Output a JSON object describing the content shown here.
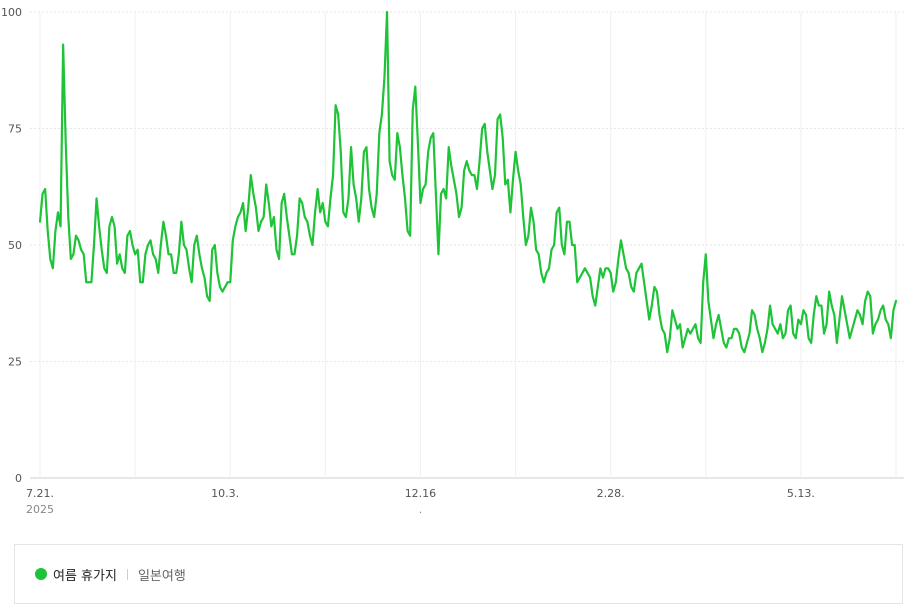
{
  "chart_data": {
    "type": "line",
    "y_ticks": [
      "0",
      "25",
      "50",
      "75",
      "100"
    ],
    "ylim": [
      0,
      100
    ],
    "x_ticks": [
      {
        "label": "7.21.",
        "sub": "2025",
        "index": 0
      },
      {
        "label": "10.3.",
        "sub": "",
        "index": 72
      },
      {
        "label": "12.16",
        "sub": ".",
        "index": 148
      },
      {
        "label": "2.28.",
        "sub": "",
        "index": 222
      },
      {
        "label": "5.13.",
        "sub": "",
        "index": 296
      }
    ],
    "grid": true,
    "legend_position": "bottom",
    "series": [
      {
        "name": "여름 휴가지",
        "color": "#1ec337",
        "values": [
          55,
          61,
          62,
          53,
          47,
          45,
          53,
          57,
          54,
          93,
          72,
          56,
          47,
          48,
          52,
          51,
          49,
          48,
          42,
          42,
          42,
          50,
          60,
          54,
          49,
          45,
          44,
          54,
          56,
          54,
          46,
          48,
          45,
          44,
          52,
          53,
          50,
          48,
          49,
          42,
          42,
          48,
          50,
          51,
          48,
          47,
          44,
          50,
          55,
          52,
          48,
          48,
          44,
          44,
          48,
          55,
          50,
          49,
          45,
          42,
          50,
          52,
          48,
          45,
          43,
          39,
          38,
          49,
          50,
          44,
          41,
          40,
          41,
          42,
          42,
          51,
          54,
          56,
          57,
          59,
          53,
          58,
          65,
          61,
          58,
          53,
          55,
          56,
          63,
          59,
          54,
          56,
          49,
          47,
          59,
          61,
          56,
          52,
          48,
          48,
          52,
          60,
          59,
          56,
          55,
          52,
          50,
          57,
          62,
          57,
          59,
          55,
          54,
          60,
          65,
          80,
          78,
          70,
          57,
          56,
          60,
          71,
          63,
          60,
          55,
          60,
          70,
          71,
          62,
          58,
          56,
          61,
          74,
          78,
          86,
          100,
          68,
          65,
          64,
          74,
          71,
          65,
          60,
          53,
          52,
          79,
          84,
          72,
          59,
          62,
          63,
          70,
          73,
          74,
          61,
          48,
          61,
          62,
          60,
          71,
          67,
          64,
          61,
          56,
          58,
          66,
          68,
          66,
          65,
          65,
          62,
          68,
          75,
          76,
          70,
          66,
          62,
          65,
          77,
          78,
          73,
          63,
          64,
          57,
          64,
          70,
          66,
          63,
          56,
          50,
          52,
          58,
          55,
          49,
          48,
          44,
          42,
          44,
          45,
          49,
          50,
          57,
          58,
          50,
          48,
          55,
          55,
          50,
          50,
          42,
          43,
          44,
          45,
          44,
          43,
          39,
          37,
          41,
          45,
          43,
          45,
          45,
          44,
          40,
          42,
          47,
          51,
          48,
          45,
          44,
          41,
          40,
          44,
          45,
          46,
          42,
          38,
          34,
          37,
          41,
          40,
          35,
          32,
          31,
          27,
          30,
          36,
          34,
          32,
          33,
          28,
          30,
          32,
          31,
          32,
          33,
          30,
          29,
          42,
          48,
          38,
          34,
          30,
          33,
          35,
          32,
          29,
          28,
          30,
          30,
          32,
          32,
          31,
          28,
          27,
          29,
          31,
          36,
          35,
          32,
          30,
          27,
          29,
          32,
          37,
          33,
          32,
          31,
          33,
          30,
          31,
          36,
          37,
          31,
          30,
          34,
          33,
          36,
          35,
          30,
          29,
          35,
          39,
          37,
          37,
          31,
          33,
          40,
          37,
          35,
          29,
          34,
          39,
          36,
          33,
          30,
          32,
          34,
          36,
          35,
          33,
          38,
          40,
          39,
          31,
          33,
          34,
          36,
          37,
          34,
          33,
          30,
          36,
          38
        ]
      }
    ],
    "legend": [
      {
        "label": "여름 휴가지",
        "color": "#1ec337",
        "active": true
      },
      {
        "label": "일본여행",
        "color": "#999999",
        "active": false
      }
    ]
  }
}
